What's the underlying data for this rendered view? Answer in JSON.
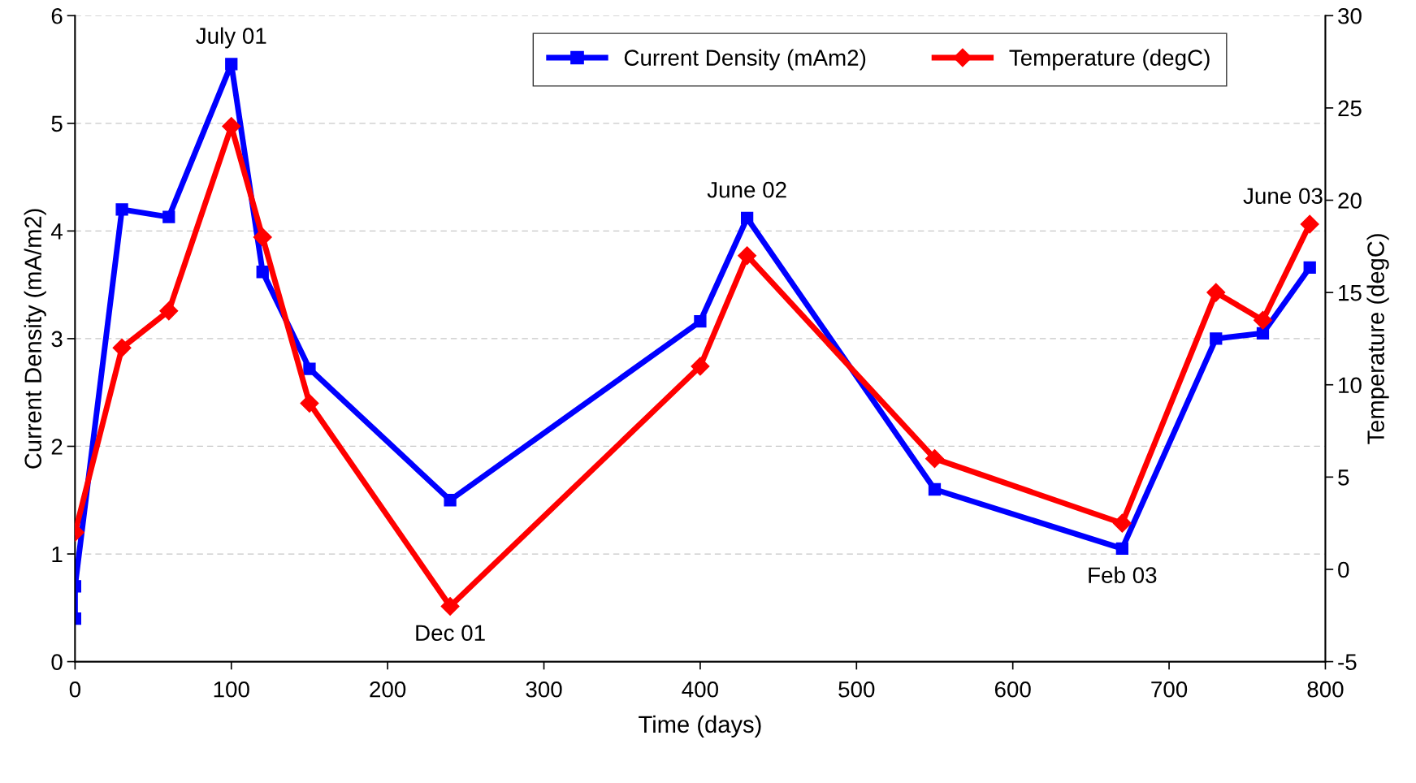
{
  "chart_data": {
    "type": "line",
    "xlabel": "Time (days)",
    "ylabel": "Current Density (mA/m2)",
    "y2label": "Temperature (degC)",
    "xlim": [
      0,
      800
    ],
    "xticks": [
      0,
      100,
      200,
      300,
      400,
      500,
      600,
      700,
      800
    ],
    "ylim": [
      0,
      6
    ],
    "yticks": [
      0,
      1,
      2,
      3,
      4,
      5,
      6
    ],
    "y2lim": [
      -5,
      30
    ],
    "y2ticks": [
      -5,
      0,
      5,
      10,
      15,
      20,
      25,
      30
    ],
    "grid": "y",
    "legend": "top right",
    "line_style": "solid",
    "series": [
      {
        "name": "Current Density (mAm2)",
        "color": "#0000ff",
        "marker": "square",
        "x": [
          0,
          0,
          30,
          60,
          100,
          120,
          150,
          240,
          400,
          430,
          550,
          670,
          730,
          760,
          790
        ],
        "values": [
          0.4,
          0.7,
          4.2,
          4.13,
          5.55,
          3.62,
          2.72,
          1.5,
          3.16,
          4.12,
          1.6,
          1.05,
          3.0,
          3.05,
          3.66
        ]
      },
      {
        "name": "Temperature (degC)",
        "color": "#ff0000",
        "marker": "diamond",
        "axis": "y2",
        "x": [
          0,
          30,
          60,
          100,
          120,
          150,
          240,
          400,
          430,
          550,
          670,
          730,
          760,
          790
        ],
        "values": [
          2,
          12,
          14,
          24,
          18,
          9,
          -2,
          11,
          17,
          6,
          2.5,
          15,
          13.5,
          18.7
        ]
      }
    ],
    "annotations": [
      {
        "text": "July 01",
        "x": 100,
        "y": 5.55
      },
      {
        "text": "Dec 01",
        "x": 240,
        "y": 0.514
      },
      {
        "text": "June 02",
        "x": 430,
        "y": 4.12
      },
      {
        "text": "Feb 03",
        "x": 670,
        "y": 1.05
      },
      {
        "text": "June 03",
        "x": 790,
        "y": 3.66
      }
    ]
  }
}
